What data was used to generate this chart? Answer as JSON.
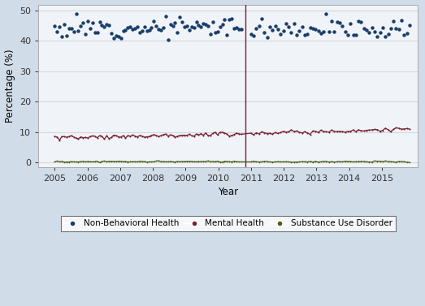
{
  "title": "",
  "xlabel": "Year",
  "ylabel": "Percentage (%)",
  "xlim": [
    2004.5,
    2016.1
  ],
  "ylim": [
    -1.5,
    52
  ],
  "yticks": [
    0,
    10,
    20,
    30,
    40,
    50
  ],
  "xticks": [
    2005,
    2006,
    2007,
    2008,
    2009,
    2010,
    2011,
    2012,
    2013,
    2014,
    2015
  ],
  "vline_x": 2010.83,
  "vline_color": "#7B2030",
  "outer_bg": "#d0dce8",
  "plot_bg": "#f0f4f8",
  "nbh_color": "#1a3d6b",
  "mh_color": "#7B2030",
  "sud_color": "#4a5e10",
  "grid_color": "#d0d8e0",
  "legend_labels": [
    "Non-Behavioral Health",
    "Mental Health",
    "Substance Use Disorder"
  ],
  "n_points_pre": 80,
  "n_points_post": 60,
  "t_pre_start": 2005.0,
  "t_pre_end": 2010.7,
  "t_post_start": 2011.0,
  "t_post_end": 2015.85
}
